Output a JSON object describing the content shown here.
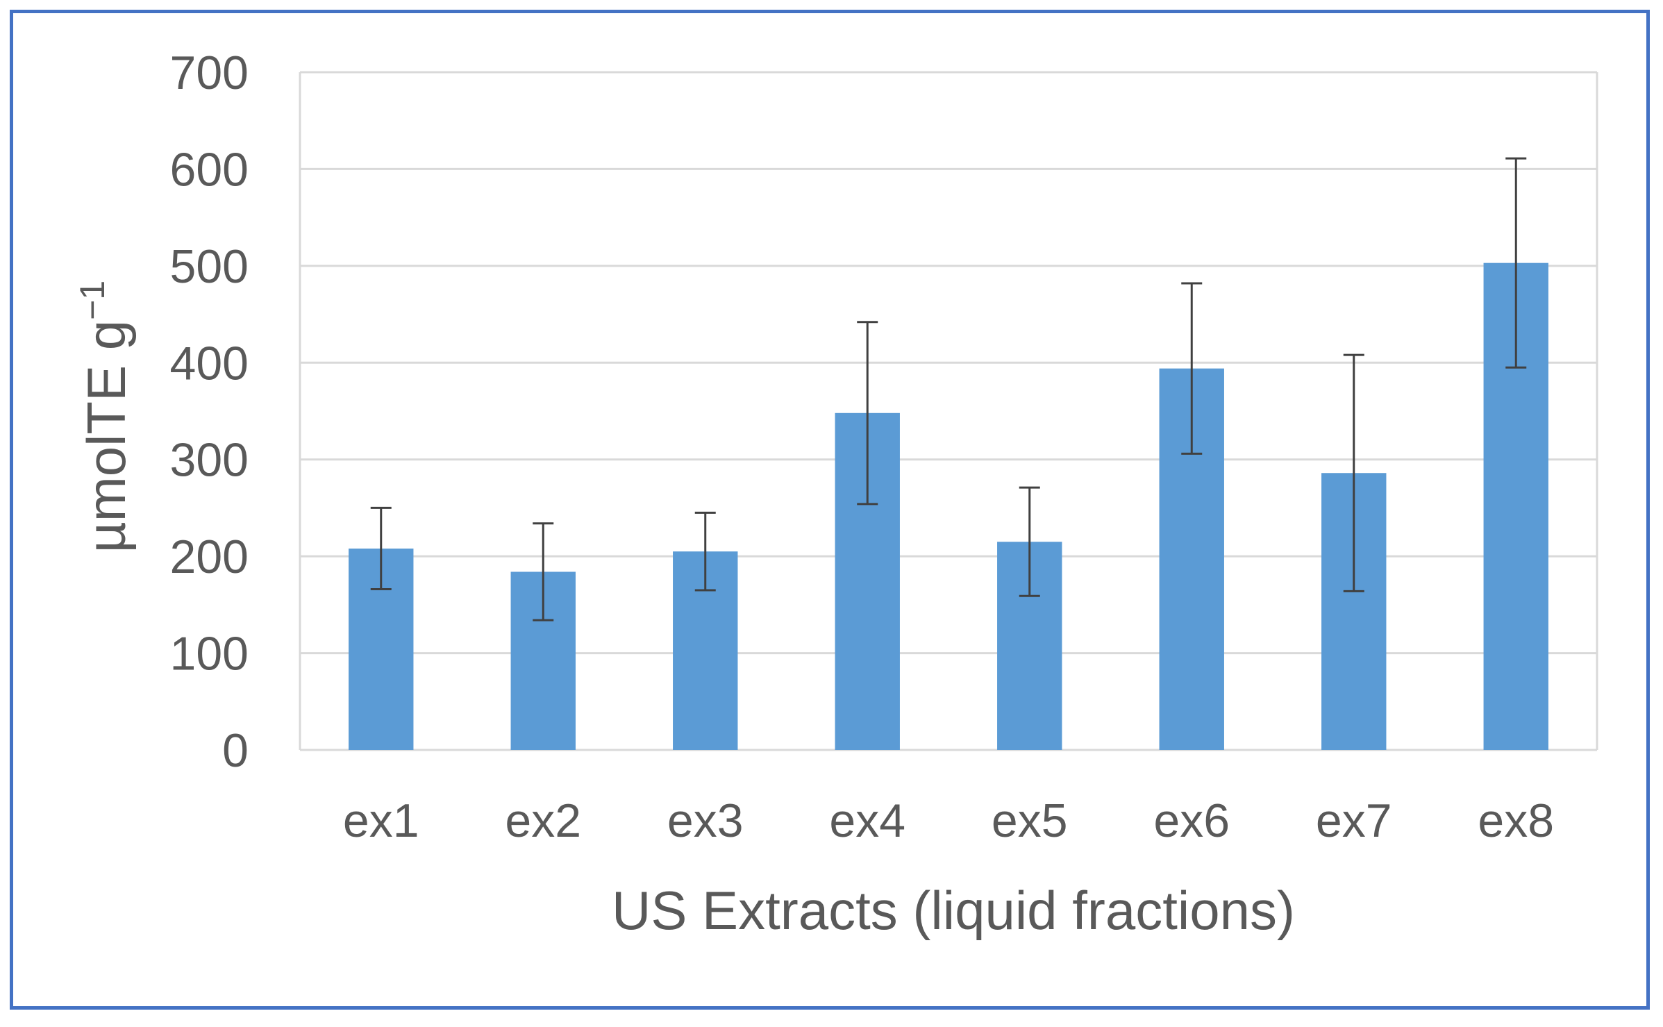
{
  "chart_data": {
    "type": "bar",
    "categories": [
      "ex1",
      "ex2",
      "ex3",
      "ex4",
      "ex5",
      "ex6",
      "ex7",
      "ex8"
    ],
    "values": [
      208,
      184,
      205,
      348,
      215,
      394,
      286,
      503
    ],
    "error": [
      42,
      50,
      40,
      94,
      56,
      88,
      122,
      108
    ],
    "xlabel": "US Extracts (liquid fractions)",
    "ylabel": {
      "main": "µmolTE g",
      "superscript": "−1"
    },
    "ylim": [
      0,
      700
    ],
    "yticks": [
      "0",
      "100",
      "200",
      "300",
      "400",
      "500",
      "600",
      "700"
    ],
    "grid": true,
    "colors": {
      "bar": "#5b9bd5",
      "error_bar": "#404040",
      "grid": "#d9d9d9",
      "text": "#595959",
      "frame": "#4472c4"
    }
  }
}
